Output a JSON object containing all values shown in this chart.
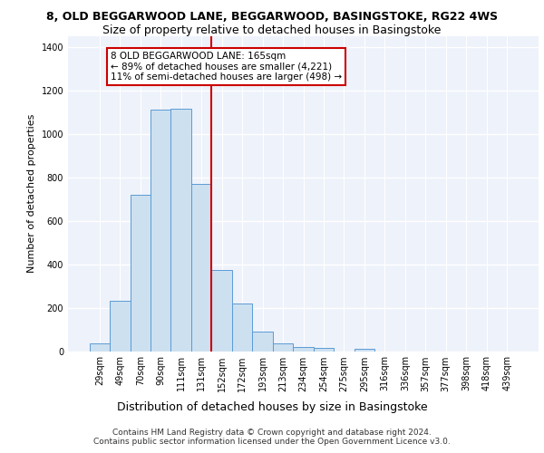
{
  "title_line1": "8, OLD BEGGARWOOD LANE, BEGGARWOOD, BASINGSTOKE, RG22 4WS",
  "title_line2": "Size of property relative to detached houses in Basingstoke",
  "xlabel": "Distribution of detached houses by size in Basingstoke",
  "ylabel": "Number of detached properties",
  "footnote": "Contains HM Land Registry data © Crown copyright and database right 2024.\nContains public sector information licensed under the Open Government Licence v3.0.",
  "categories": [
    "29sqm",
    "49sqm",
    "70sqm",
    "90sqm",
    "111sqm",
    "131sqm",
    "152sqm",
    "172sqm",
    "193sqm",
    "213sqm",
    "234sqm",
    "254sqm",
    "275sqm",
    "295sqm",
    "316sqm",
    "336sqm",
    "357sqm",
    "377sqm",
    "398sqm",
    "418sqm",
    "439sqm"
  ],
  "values": [
    35,
    230,
    720,
    1110,
    1115,
    770,
    375,
    220,
    90,
    35,
    20,
    15,
    0,
    10,
    0,
    0,
    0,
    0,
    0,
    0,
    0
  ],
  "bar_color": "#cce0f0",
  "bar_edge_color": "#5b9bd5",
  "vline_x": 5.5,
  "vline_color": "#cc0000",
  "annotation_text": "8 OLD BEGGARWOOD LANE: 165sqm\n← 89% of detached houses are smaller (4,221)\n11% of semi-detached houses are larger (498) →",
  "annotation_box_color": "#cc0000",
  "annotation_box_facecolor": "white",
  "ylim": [
    0,
    1450
  ],
  "yticks": [
    0,
    200,
    400,
    600,
    800,
    1000,
    1200,
    1400
  ],
  "background_color": "#eef2fa",
  "grid_color": "white",
  "title_fontsize": 9,
  "subtitle_fontsize": 9,
  "ylabel_fontsize": 8,
  "xlabel_fontsize": 9,
  "tick_fontsize": 7,
  "footnote_fontsize": 6.5,
  "annotation_fontsize": 7.5
}
